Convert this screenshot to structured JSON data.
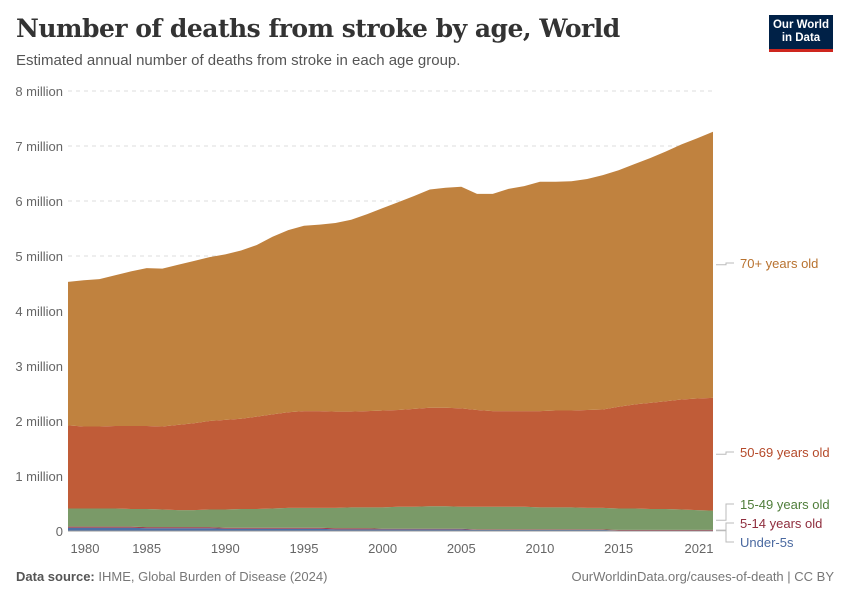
{
  "header": {
    "title": "Number of deaths from stroke by age, World",
    "subtitle": "Estimated annual number of deaths from stroke in each age group.",
    "logo": "Our World in Data"
  },
  "footer": {
    "source_label": "Data source:",
    "source": "IHME, Global Burden of Disease (2024)",
    "link": "OurWorldinData.org/causes-of-death | CC BY"
  },
  "chart_data": {
    "type": "area",
    "stacked": true,
    "title": "Number of deaths from stroke by age, World",
    "xlim": [
      1980,
      2021
    ],
    "ylim": [
      0,
      8
    ],
    "yunit": "million",
    "grid": "horizontal dashed",
    "legend": "right (inline labels)",
    "yticks": [
      "0",
      "1 million",
      "2 million",
      "3 million",
      "4 million",
      "5 million",
      "6 million",
      "7 million",
      "8 million"
    ],
    "xticks": [
      "1980",
      "1985",
      "1990",
      "1995",
      "2000",
      "2005",
      "2010",
      "2015",
      "2021"
    ],
    "x": [
      1980,
      1981,
      1982,
      1983,
      1984,
      1985,
      1986,
      1987,
      1988,
      1989,
      1990,
      1991,
      1992,
      1993,
      1994,
      1995,
      1996,
      1997,
      1998,
      1999,
      2000,
      2001,
      2002,
      2003,
      2004,
      2005,
      2006,
      2007,
      2008,
      2009,
      2010,
      2011,
      2012,
      2013,
      2014,
      2015,
      2016,
      2017,
      2018,
      2019,
      2020,
      2021
    ],
    "series": [
      {
        "name": "Under-5s",
        "color": "#4c6fa6",
        "label_color": "#4a69a0",
        "values": [
          0.06,
          0.06,
          0.06,
          0.06,
          0.06,
          0.05,
          0.05,
          0.05,
          0.05,
          0.05,
          0.04,
          0.04,
          0.04,
          0.04,
          0.04,
          0.04,
          0.04,
          0.03,
          0.03,
          0.03,
          0.03,
          0.03,
          0.03,
          0.03,
          0.03,
          0.03,
          0.02,
          0.02,
          0.02,
          0.02,
          0.02,
          0.02,
          0.02,
          0.02,
          0.02,
          0.01,
          0.01,
          0.01,
          0.01,
          0.01,
          0.01,
          0.01
        ]
      },
      {
        "name": "5-14 years old",
        "color": "#a2404e",
        "label_color": "#8f2e3e",
        "values": [
          0.02,
          0.02,
          0.02,
          0.02,
          0.02,
          0.02,
          0.02,
          0.02,
          0.02,
          0.02,
          0.02,
          0.02,
          0.02,
          0.02,
          0.02,
          0.02,
          0.02,
          0.02,
          0.02,
          0.02,
          0.01,
          0.01,
          0.01,
          0.01,
          0.01,
          0.01,
          0.01,
          0.01,
          0.01,
          0.01,
          0.01,
          0.01,
          0.01,
          0.01,
          0.01,
          0.01,
          0.01,
          0.01,
          0.01,
          0.01,
          0.01,
          0.01
        ]
      },
      {
        "name": "15-49 years old",
        "color": "#7a9a68",
        "label_color": "#4f7d3a",
        "values": [
          0.33,
          0.33,
          0.33,
          0.33,
          0.32,
          0.33,
          0.32,
          0.31,
          0.31,
          0.32,
          0.33,
          0.34,
          0.34,
          0.35,
          0.36,
          0.36,
          0.36,
          0.37,
          0.38,
          0.38,
          0.39,
          0.4,
          0.4,
          0.41,
          0.41,
          0.4,
          0.41,
          0.41,
          0.41,
          0.41,
          0.4,
          0.4,
          0.4,
          0.39,
          0.39,
          0.39,
          0.39,
          0.38,
          0.38,
          0.37,
          0.36,
          0.35
        ]
      },
      {
        "name": "50-69 years old",
        "color": "#c05c38",
        "label_color": "#b54a2a",
        "values": [
          1.51,
          1.49,
          1.49,
          1.5,
          1.51,
          1.51,
          1.51,
          1.55,
          1.58,
          1.61,
          1.63,
          1.64,
          1.68,
          1.71,
          1.74,
          1.76,
          1.76,
          1.75,
          1.74,
          1.75,
          1.76,
          1.76,
          1.78,
          1.79,
          1.79,
          1.79,
          1.76,
          1.74,
          1.74,
          1.74,
          1.75,
          1.76,
          1.76,
          1.78,
          1.79,
          1.85,
          1.89,
          1.93,
          1.96,
          2.0,
          2.03,
          2.05
        ]
      },
      {
        "name": "70+ years old",
        "color": "#c0823f",
        "label_color": "#b8722f",
        "values": [
          2.61,
          2.66,
          2.68,
          2.74,
          2.81,
          2.87,
          2.87,
          2.91,
          2.95,
          2.98,
          3.01,
          3.06,
          3.12,
          3.23,
          3.31,
          3.37,
          3.39,
          3.43,
          3.49,
          3.58,
          3.68,
          3.78,
          3.87,
          3.97,
          4.0,
          4.03,
          3.93,
          3.95,
          4.04,
          4.09,
          4.17,
          4.16,
          4.17,
          4.2,
          4.26,
          4.3,
          4.37,
          4.45,
          4.54,
          4.64,
          4.73,
          4.84
        ]
      }
    ]
  }
}
